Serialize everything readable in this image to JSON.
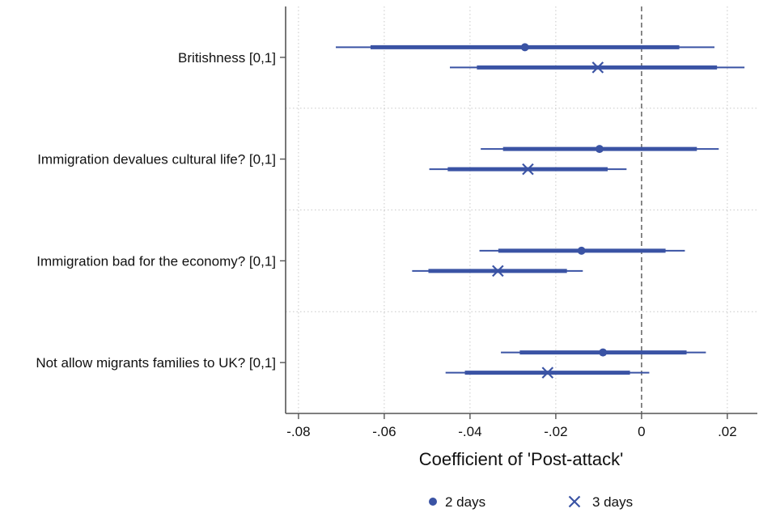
{
  "chart_data": {
    "type": "coefficient-plot",
    "title": "",
    "xlabel": "Coefficient of 'Post-attack'",
    "ylabel": "",
    "xlim": [
      -0.083,
      0.027
    ],
    "xticks": [
      -0.08,
      -0.06,
      -0.04,
      -0.02,
      0,
      0.02
    ],
    "xtick_labels": [
      "-.08",
      "-.06",
      "-.04",
      "-.02",
      "0",
      ".02"
    ],
    "reference_line": 0,
    "grid": true,
    "legend_position": "bottom-center",
    "categories": [
      "Britishness [0,1]",
      "Immigration devalues cultural life? [0,1]",
      "Immigration bad for the economy? [0,1]",
      "Not allow migrants families to UK? [0,1]"
    ],
    "series": [
      {
        "name": "2 days",
        "marker": "circle",
        "color": "#3a53a4",
        "points": [
          {
            "estimate": -0.0272,
            "ci_inner": [
              -0.0632,
              0.0088
            ],
            "ci_outer": [
              -0.0713,
              0.017
            ]
          },
          {
            "estimate": -0.0098,
            "ci_inner": [
              -0.0323,
              0.0129
            ],
            "ci_outer": [
              -0.0375,
              0.018
            ]
          },
          {
            "estimate": -0.014,
            "ci_inner": [
              -0.0334,
              0.0056
            ],
            "ci_outer": [
              -0.0378,
              0.0101
            ]
          },
          {
            "estimate": -0.009,
            "ci_inner": [
              -0.0284,
              0.0105
            ],
            "ci_outer": [
              -0.0328,
              0.015
            ]
          }
        ]
      },
      {
        "name": "3 days",
        "marker": "x",
        "color": "#3a53a4",
        "points": [
          {
            "estimate": -0.0102,
            "ci_inner": [
              -0.0384,
              0.0176
            ],
            "ci_outer": [
              -0.0447,
              0.024
            ]
          },
          {
            "estimate": -0.0265,
            "ci_inner": [
              -0.0452,
              -0.0079
            ],
            "ci_outer": [
              -0.0495,
              -0.0035
            ]
          },
          {
            "estimate": -0.0335,
            "ci_inner": [
              -0.0497,
              -0.0174
            ],
            "ci_outer": [
              -0.0535,
              -0.0137
            ]
          },
          {
            "estimate": -0.0219,
            "ci_inner": [
              -0.0412,
              -0.0027
            ],
            "ci_outer": [
              -0.0457,
              0.0018
            ]
          }
        ]
      }
    ]
  }
}
